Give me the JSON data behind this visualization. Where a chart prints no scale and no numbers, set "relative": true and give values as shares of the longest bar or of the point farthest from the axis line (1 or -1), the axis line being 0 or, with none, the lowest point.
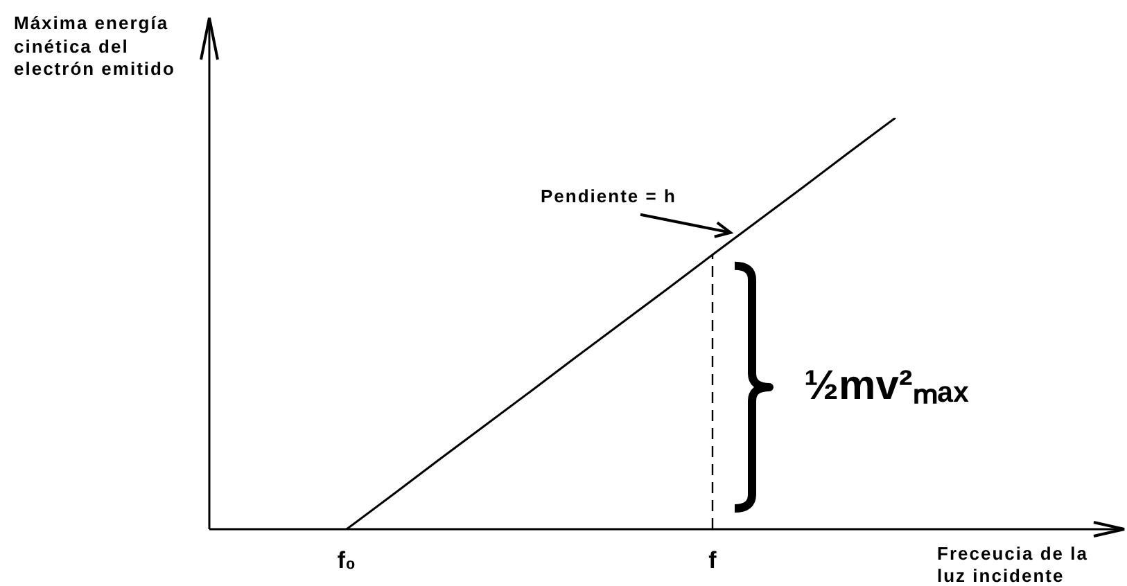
{
  "chart_data": {
    "type": "line",
    "relative": true,
    "xlabel": "Freceucia de la luz incidente",
    "ylabel": "Máxima energía cinética del electrón emitido",
    "categories": [
      null,
      null,
      null,
      "f₀",
      null,
      null,
      null,
      null,
      null,
      null,
      null,
      "f",
      null,
      null,
      null,
      null,
      null,
      null,
      null,
      null,
      null
    ],
    "values": [
      null,
      null,
      null,
      0,
      0.083,
      0.167,
      0.25,
      0.333,
      0.417,
      0.5,
      0.583,
      0.667,
      0.75,
      0.833,
      0.917,
      1,
      null,
      null,
      null,
      null,
      null
    ],
    "color": "#000000",
    "ref_lines": [
      {
        "axis": "x",
        "value": "f",
        "line_style": "dashed"
      }
    ],
    "annotations": [
      "Pendiente = h",
      {
        "text": "½mv²ₘₐₓ",
        "x": "f"
      }
    ]
  }
}
